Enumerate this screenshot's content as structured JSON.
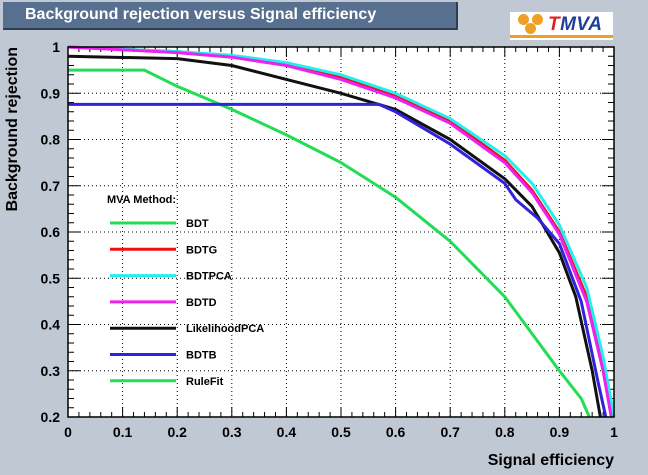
{
  "title": "Background rejection versus Signal efficiency",
  "logo": {
    "prefix": "T",
    "name": "MVA",
    "accent_color": "#f0a020",
    "text_color": "#1f3f9a",
    "prefix_color": "#e02020"
  },
  "colors": {
    "page_bg": "#c0c8d4",
    "title_bg": "#58708f",
    "plot_bg": "#ffffff"
  },
  "chart_data": {
    "type": "line",
    "title": "Background rejection versus Signal efficiency",
    "xlabel": "Signal efficiency",
    "ylabel": "Background rejection",
    "xlim": [
      0,
      1
    ],
    "ylim": [
      0.2,
      1
    ],
    "xticks": [
      "0",
      "0.1",
      "0.2",
      "0.3",
      "0.4",
      "0.5",
      "0.6",
      "0.7",
      "0.8",
      "0.9",
      "1"
    ],
    "yticks": [
      "0.2",
      "0.3",
      "0.4",
      "0.5",
      "0.6",
      "0.7",
      "0.8",
      "0.9",
      "1"
    ],
    "legend": {
      "title": "MVA Method:",
      "placement": "center-left"
    },
    "series": [
      {
        "name": "BDT",
        "color": "#22dd55",
        "x": [
          0,
          0.14,
          0.2,
          0.3,
          0.4,
          0.5,
          0.6,
          0.7,
          0.8,
          0.9,
          0.94,
          0.955
        ],
        "y": [
          0.95,
          0.95,
          0.915,
          0.865,
          0.81,
          0.75,
          0.675,
          0.58,
          0.46,
          0.3,
          0.24,
          0.2
        ]
      },
      {
        "name": "BDTG",
        "color": "#ee1111",
        "x": [
          0,
          0.2,
          0.3,
          0.4,
          0.5,
          0.6,
          0.7,
          0.8,
          0.85,
          0.9,
          0.95,
          0.98,
          1.0
        ],
        "y": [
          1.0,
          0.99,
          0.98,
          0.962,
          0.935,
          0.895,
          0.84,
          0.755,
          0.69,
          0.6,
          0.46,
          0.31,
          0.2
        ]
      },
      {
        "name": "BDTPCA",
        "color": "#22eeee",
        "x": [
          0,
          0.2,
          0.3,
          0.4,
          0.5,
          0.6,
          0.7,
          0.8,
          0.85,
          0.9,
          0.95,
          0.98,
          1.0
        ],
        "y": [
          1.0,
          0.99,
          0.982,
          0.966,
          0.94,
          0.9,
          0.845,
          0.765,
          0.705,
          0.615,
          0.48,
          0.33,
          0.2
        ]
      },
      {
        "name": "BDTD",
        "color": "#ee22ee",
        "x": [
          0,
          0.2,
          0.3,
          0.4,
          0.5,
          0.6,
          0.7,
          0.8,
          0.85,
          0.9,
          0.95,
          0.98,
          0.995
        ],
        "y": [
          1.0,
          0.988,
          0.978,
          0.96,
          0.93,
          0.89,
          0.835,
          0.75,
          0.685,
          0.595,
          0.45,
          0.3,
          0.2
        ]
      },
      {
        "name": "LikelihoodPCA",
        "color": "#111111",
        "x": [
          0,
          0.2,
          0.3,
          0.4,
          0.5,
          0.6,
          0.7,
          0.8,
          0.85,
          0.9,
          0.93,
          0.96,
          0.975
        ],
        "y": [
          0.98,
          0.975,
          0.96,
          0.93,
          0.9,
          0.865,
          0.8,
          0.715,
          0.655,
          0.555,
          0.46,
          0.3,
          0.2
        ]
      },
      {
        "name": "BDTB",
        "color": "#3322dd",
        "x": [
          0,
          0.25,
          0.5,
          0.57,
          0.6,
          0.7,
          0.8,
          0.82,
          0.86,
          0.9,
          0.94,
          0.97,
          0.985
        ],
        "y": [
          0.876,
          0.876,
          0.876,
          0.876,
          0.86,
          0.79,
          0.705,
          0.67,
          0.63,
          0.575,
          0.45,
          0.28,
          0.2
        ]
      },
      {
        "name": "RuleFit",
        "color": "#22dd55",
        "x": [],
        "y": []
      }
    ]
  }
}
